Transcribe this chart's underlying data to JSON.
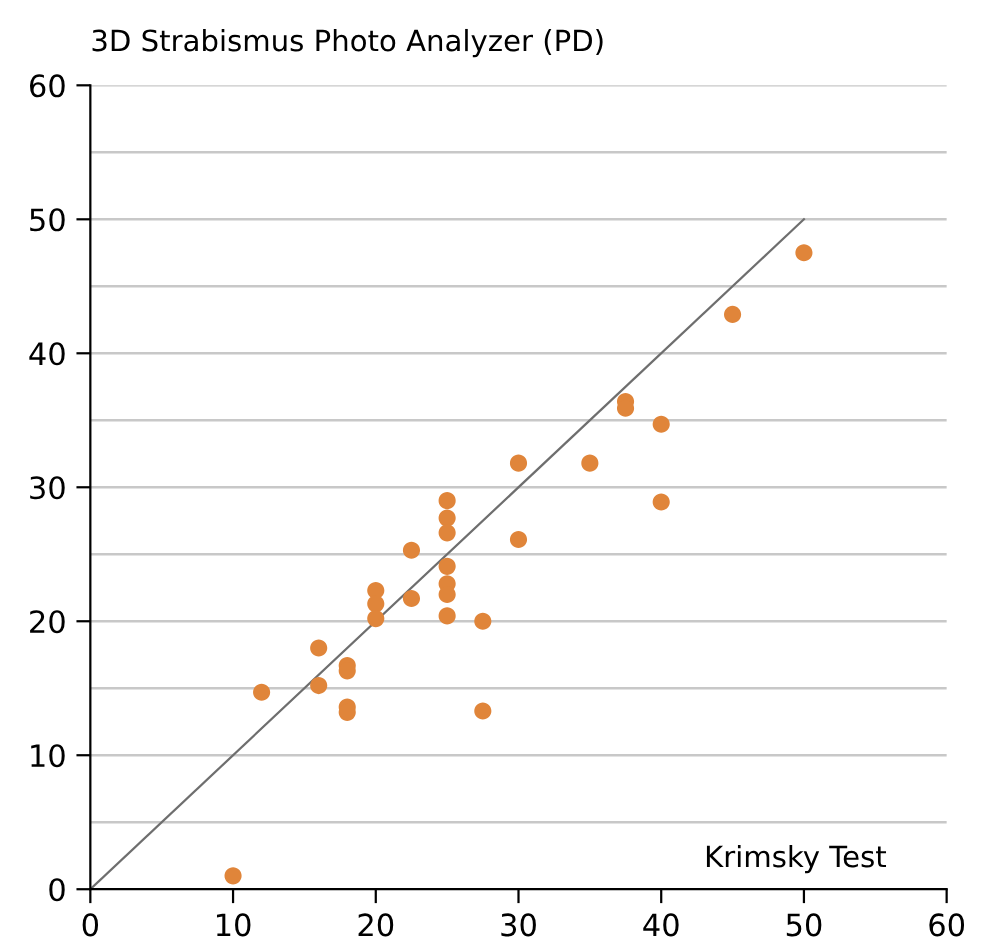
{
  "chart_data": {
    "type": "scatter",
    "ylabel": "3D Strabismus Photo Analyzer (PD)",
    "xlabel": "Krimsky Test",
    "series": [
      {
        "marker": "circle",
        "color": "#e0853a",
        "x": [
          10,
          12,
          16,
          16,
          18,
          18,
          18,
          18,
          20,
          20,
          20,
          22.5,
          22.5,
          25,
          25,
          25,
          25,
          25,
          25,
          25,
          27.5,
          27.5,
          30,
          30,
          35,
          37.5,
          37.5,
          40,
          40,
          45,
          50
        ],
        "values": [
          1,
          14.7,
          18,
          15.2,
          16.7,
          16.3,
          13.6,
          13.2,
          22.3,
          21.3,
          20.2,
          25.3,
          21.7,
          29,
          27.7,
          26.6,
          24.1,
          22.8,
          22,
          20.4,
          20,
          13.3,
          31.8,
          26.1,
          31.8,
          36.4,
          35.9,
          34.7,
          28.9,
          42.9,
          47.5
        ]
      },
      {
        "type": "line",
        "marker": "none",
        "color": "#6e6e6e",
        "x": [
          0,
          50
        ],
        "values": [
          0,
          50
        ]
      }
    ],
    "xlim": [
      0,
      60
    ],
    "ylim": [
      0,
      60
    ],
    "xticks": [
      0,
      10,
      20,
      30,
      40,
      50,
      60
    ],
    "yticks": [
      0,
      {
        "value": 5,
        "label": null
      },
      10,
      {
        "value": 15,
        "label": null
      },
      20,
      {
        "value": 25,
        "label": null
      },
      30,
      {
        "value": 35,
        "label": null
      },
      40,
      {
        "value": 45,
        "label": null
      },
      50,
      {
        "value": 55,
        "label": null
      },
      60
    ],
    "grid": "y"
  }
}
